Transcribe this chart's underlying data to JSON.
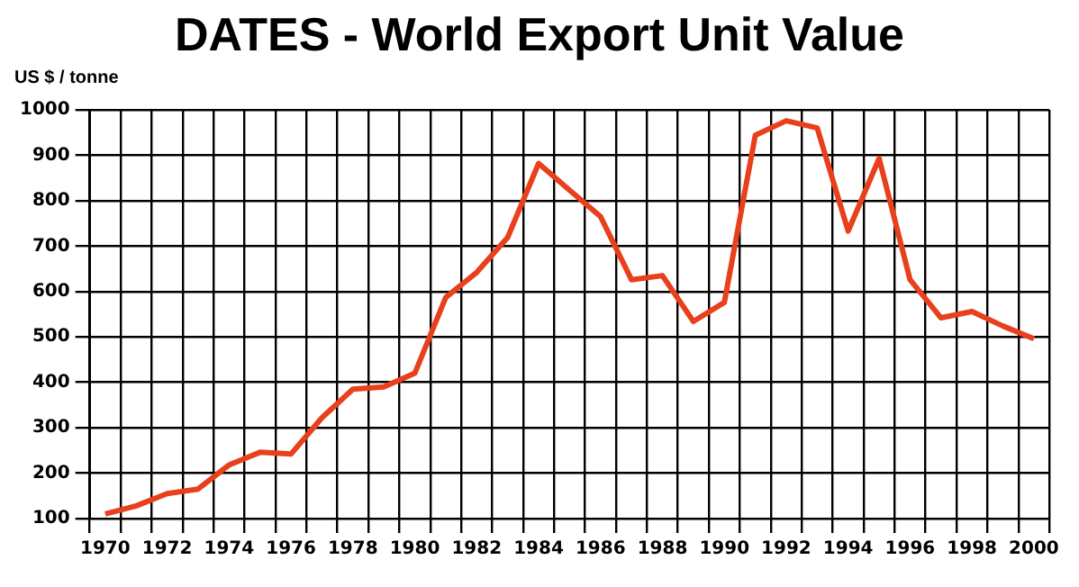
{
  "chart_data": {
    "type": "line",
    "title": "DATES - World Export Unit Value",
    "ylabel": "US $ / tonne",
    "categories": [
      "1970",
      null,
      "1972",
      null,
      "1974",
      null,
      "1976",
      null,
      "1978",
      null,
      "1980",
      null,
      "1982",
      null,
      "1984",
      null,
      "1986",
      null,
      "1988",
      null,
      "1990",
      null,
      "1992",
      null,
      "1994",
      null,
      "1996",
      null,
      "1998",
      null,
      "2000"
    ],
    "series": [
      {
        "color": "#e8401c",
        "values": [
          110,
          128,
          155,
          165,
          218,
          246,
          242,
          322,
          385,
          390,
          420,
          587,
          642,
          719,
          882,
          823,
          765,
          626,
          635,
          534,
          576,
          944,
          976,
          960,
          733,
          893,
          626,
          542,
          556,
          524,
          496
        ]
      }
    ],
    "ylim": [
      100,
      1000
    ],
    "yticks": [
      100,
      200,
      300,
      400,
      500,
      600,
      700,
      800,
      900,
      1000
    ],
    "grid": true,
    "legend": false,
    "marker": "none",
    "line_style": "solid"
  }
}
